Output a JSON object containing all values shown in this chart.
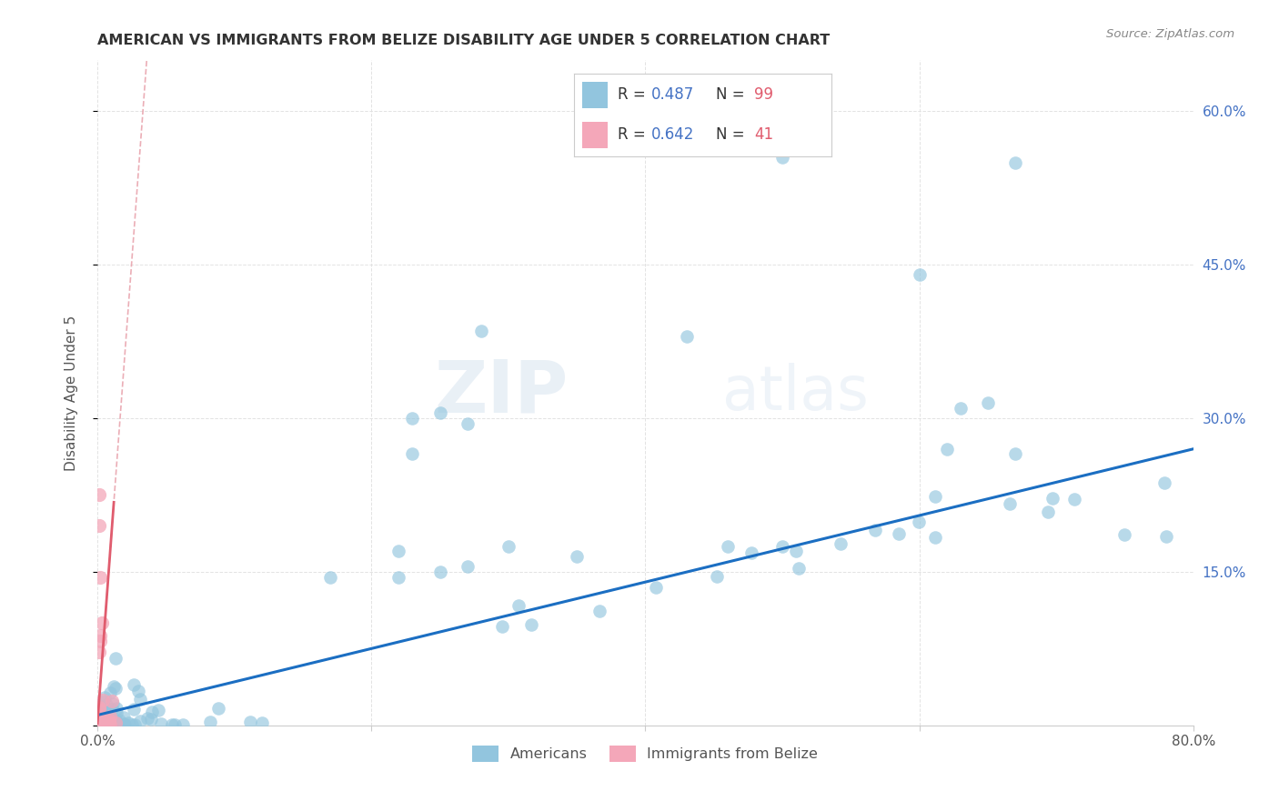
{
  "title": "AMERICAN VS IMMIGRANTS FROM BELIZE DISABILITY AGE UNDER 5 CORRELATION CHART",
  "source": "Source: ZipAtlas.com",
  "ylabel": "Disability Age Under 5",
  "xlim": [
    0,
    0.8
  ],
  "ylim": [
    0,
    0.65
  ],
  "americans_R": 0.487,
  "americans_N": 99,
  "belize_R": 0.642,
  "belize_N": 41,
  "americans_color": "#92C5DE",
  "belize_color": "#F4A7B9",
  "trendline_american_color": "#1B6EC2",
  "trendline_belize_color": "#E05C6E",
  "trendline_belize_dashed_color": "#E8A0AA",
  "watermark_zip": "ZIP",
  "watermark_atlas": "atlas",
  "legend_label_american": "Americans",
  "legend_label_belize": "Immigrants from Belize",
  "r_color": "#4472C4",
  "n_color": "#E05C6E"
}
